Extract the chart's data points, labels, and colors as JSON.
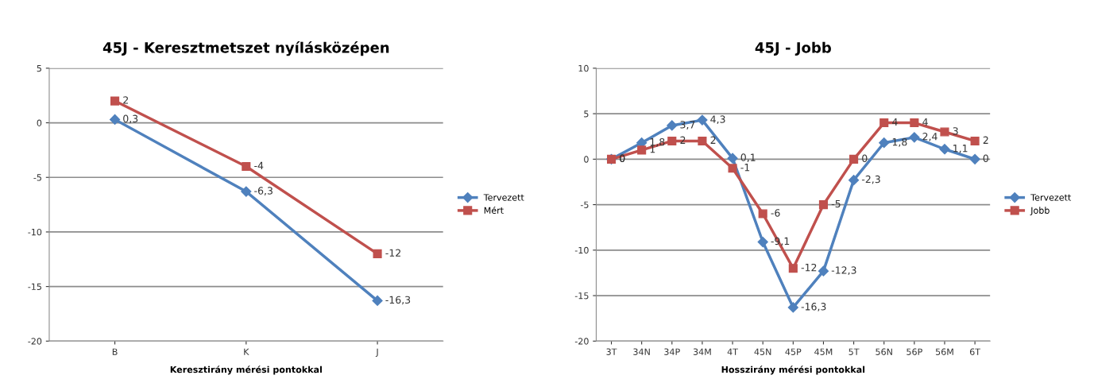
{
  "chart_data": [
    {
      "type": "line",
      "title": "45J - Keresztmetszet nyílásközépen",
      "xlabel": "Keresztirány mérési pontokkal",
      "categories": [
        "B",
        "K",
        "J"
      ],
      "ylim": [
        -20,
        5
      ],
      "yticks": [
        -20,
        -15,
        -10,
        -5,
        0,
        5
      ],
      "grid": "y",
      "legend": "right",
      "series": [
        {
          "name": "Tervezett",
          "color": "#4f81bd",
          "marker": "diamond",
          "values": [
            0.3,
            -6.3,
            -16.3
          ],
          "value_labels": [
            "0,3",
            "-6,3",
            "-16,3"
          ]
        },
        {
          "name": "Mért",
          "color": "#c0504d",
          "marker": "square",
          "values": [
            2,
            -4,
            -12
          ],
          "value_labels": [
            "2",
            "-4",
            "-12"
          ]
        }
      ]
    },
    {
      "type": "line",
      "title": "45J - Jobb",
      "xlabel": "Hosszirány mérési pontokkal",
      "categories": [
        "3T",
        "34N",
        "34P",
        "34M",
        "4T",
        "45N",
        "45P",
        "45M",
        "5T",
        "56N",
        "56P",
        "56M",
        "6T"
      ],
      "ylim": [
        -20,
        10
      ],
      "yticks": [
        -20,
        -15,
        -10,
        -5,
        0,
        5,
        10
      ],
      "grid": "y",
      "legend": "right",
      "series": [
        {
          "name": "Tervezett",
          "color": "#4f81bd",
          "marker": "diamond",
          "values": [
            0,
            1.8,
            3.7,
            4.3,
            0.1,
            -9.1,
            -16.3,
            -12.3,
            -2.3,
            1.8,
            2.4,
            1.1,
            0
          ],
          "value_labels": [
            "0",
            "1,8",
            "3,7",
            "4,3",
            "0,1",
            "-9,1",
            "-16,3",
            "-12,3",
            "-2,3",
            "1,8",
            "2,4",
            "1,1",
            "0"
          ]
        },
        {
          "name": "Jobb",
          "color": "#c0504d",
          "marker": "square",
          "values": [
            0,
            1,
            2,
            2,
            -1,
            -6,
            -12,
            -5,
            0,
            4,
            4,
            3,
            2
          ],
          "value_labels": [
            "0",
            "1",
            "2",
            "2",
            "-1",
            "-6",
            "-12",
            "-5",
            "0",
            "4",
            "4",
            "3",
            "2"
          ]
        }
      ]
    }
  ]
}
